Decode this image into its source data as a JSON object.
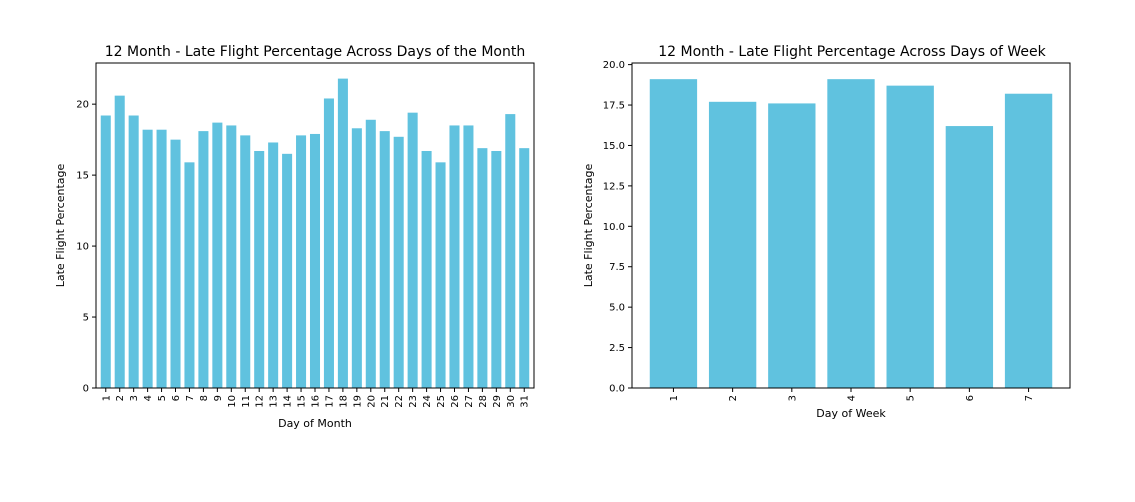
{
  "chart_data": [
    {
      "type": "bar",
      "title": "12 Month - Late Flight Percentage Across Days of the Month",
      "xlabel": "Day of Month",
      "ylabel": "Late Flight Percentage",
      "categories": [
        "1",
        "2",
        "3",
        "4",
        "5",
        "6",
        "7",
        "8",
        "9",
        "10",
        "11",
        "12",
        "13",
        "14",
        "15",
        "16",
        "17",
        "18",
        "19",
        "20",
        "21",
        "22",
        "23",
        "24",
        "25",
        "26",
        "27",
        "28",
        "29",
        "30",
        "31"
      ],
      "values": [
        19.2,
        20.6,
        19.2,
        18.2,
        18.2,
        17.5,
        15.9,
        18.1,
        18.7,
        18.5,
        17.8,
        16.7,
        17.3,
        16.5,
        17.8,
        17.9,
        20.4,
        21.8,
        18.3,
        18.9,
        18.1,
        17.7,
        19.4,
        16.7,
        15.9,
        18.5,
        18.5,
        16.9,
        16.7,
        19.3,
        16.9
      ],
      "ylim": [
        0,
        22.9
      ],
      "yticks": [
        "0",
        "5",
        "10",
        "15",
        "20"
      ],
      "grid": false,
      "xtick_rotation": "vertical",
      "color": "#5bc0de"
    },
    {
      "type": "bar",
      "title": "12 Month - Late Flight Percentage Across Days of Week",
      "xlabel": "Day of Week",
      "ylabel": "Late Flight Percentage",
      "categories": [
        "1",
        "2",
        "3",
        "4",
        "5",
        "6",
        "7"
      ],
      "values": [
        19.1,
        17.7,
        17.6,
        19.1,
        18.7,
        16.2,
        18.2
      ],
      "ylim": [
        0,
        20.1
      ],
      "yticks": [
        "0.0",
        "2.5",
        "5.0",
        "7.5",
        "10.0",
        "12.5",
        "15.0",
        "17.5",
        "20.0"
      ],
      "grid": false,
      "xtick_rotation": "vertical",
      "color": "#5bc0de"
    }
  ]
}
